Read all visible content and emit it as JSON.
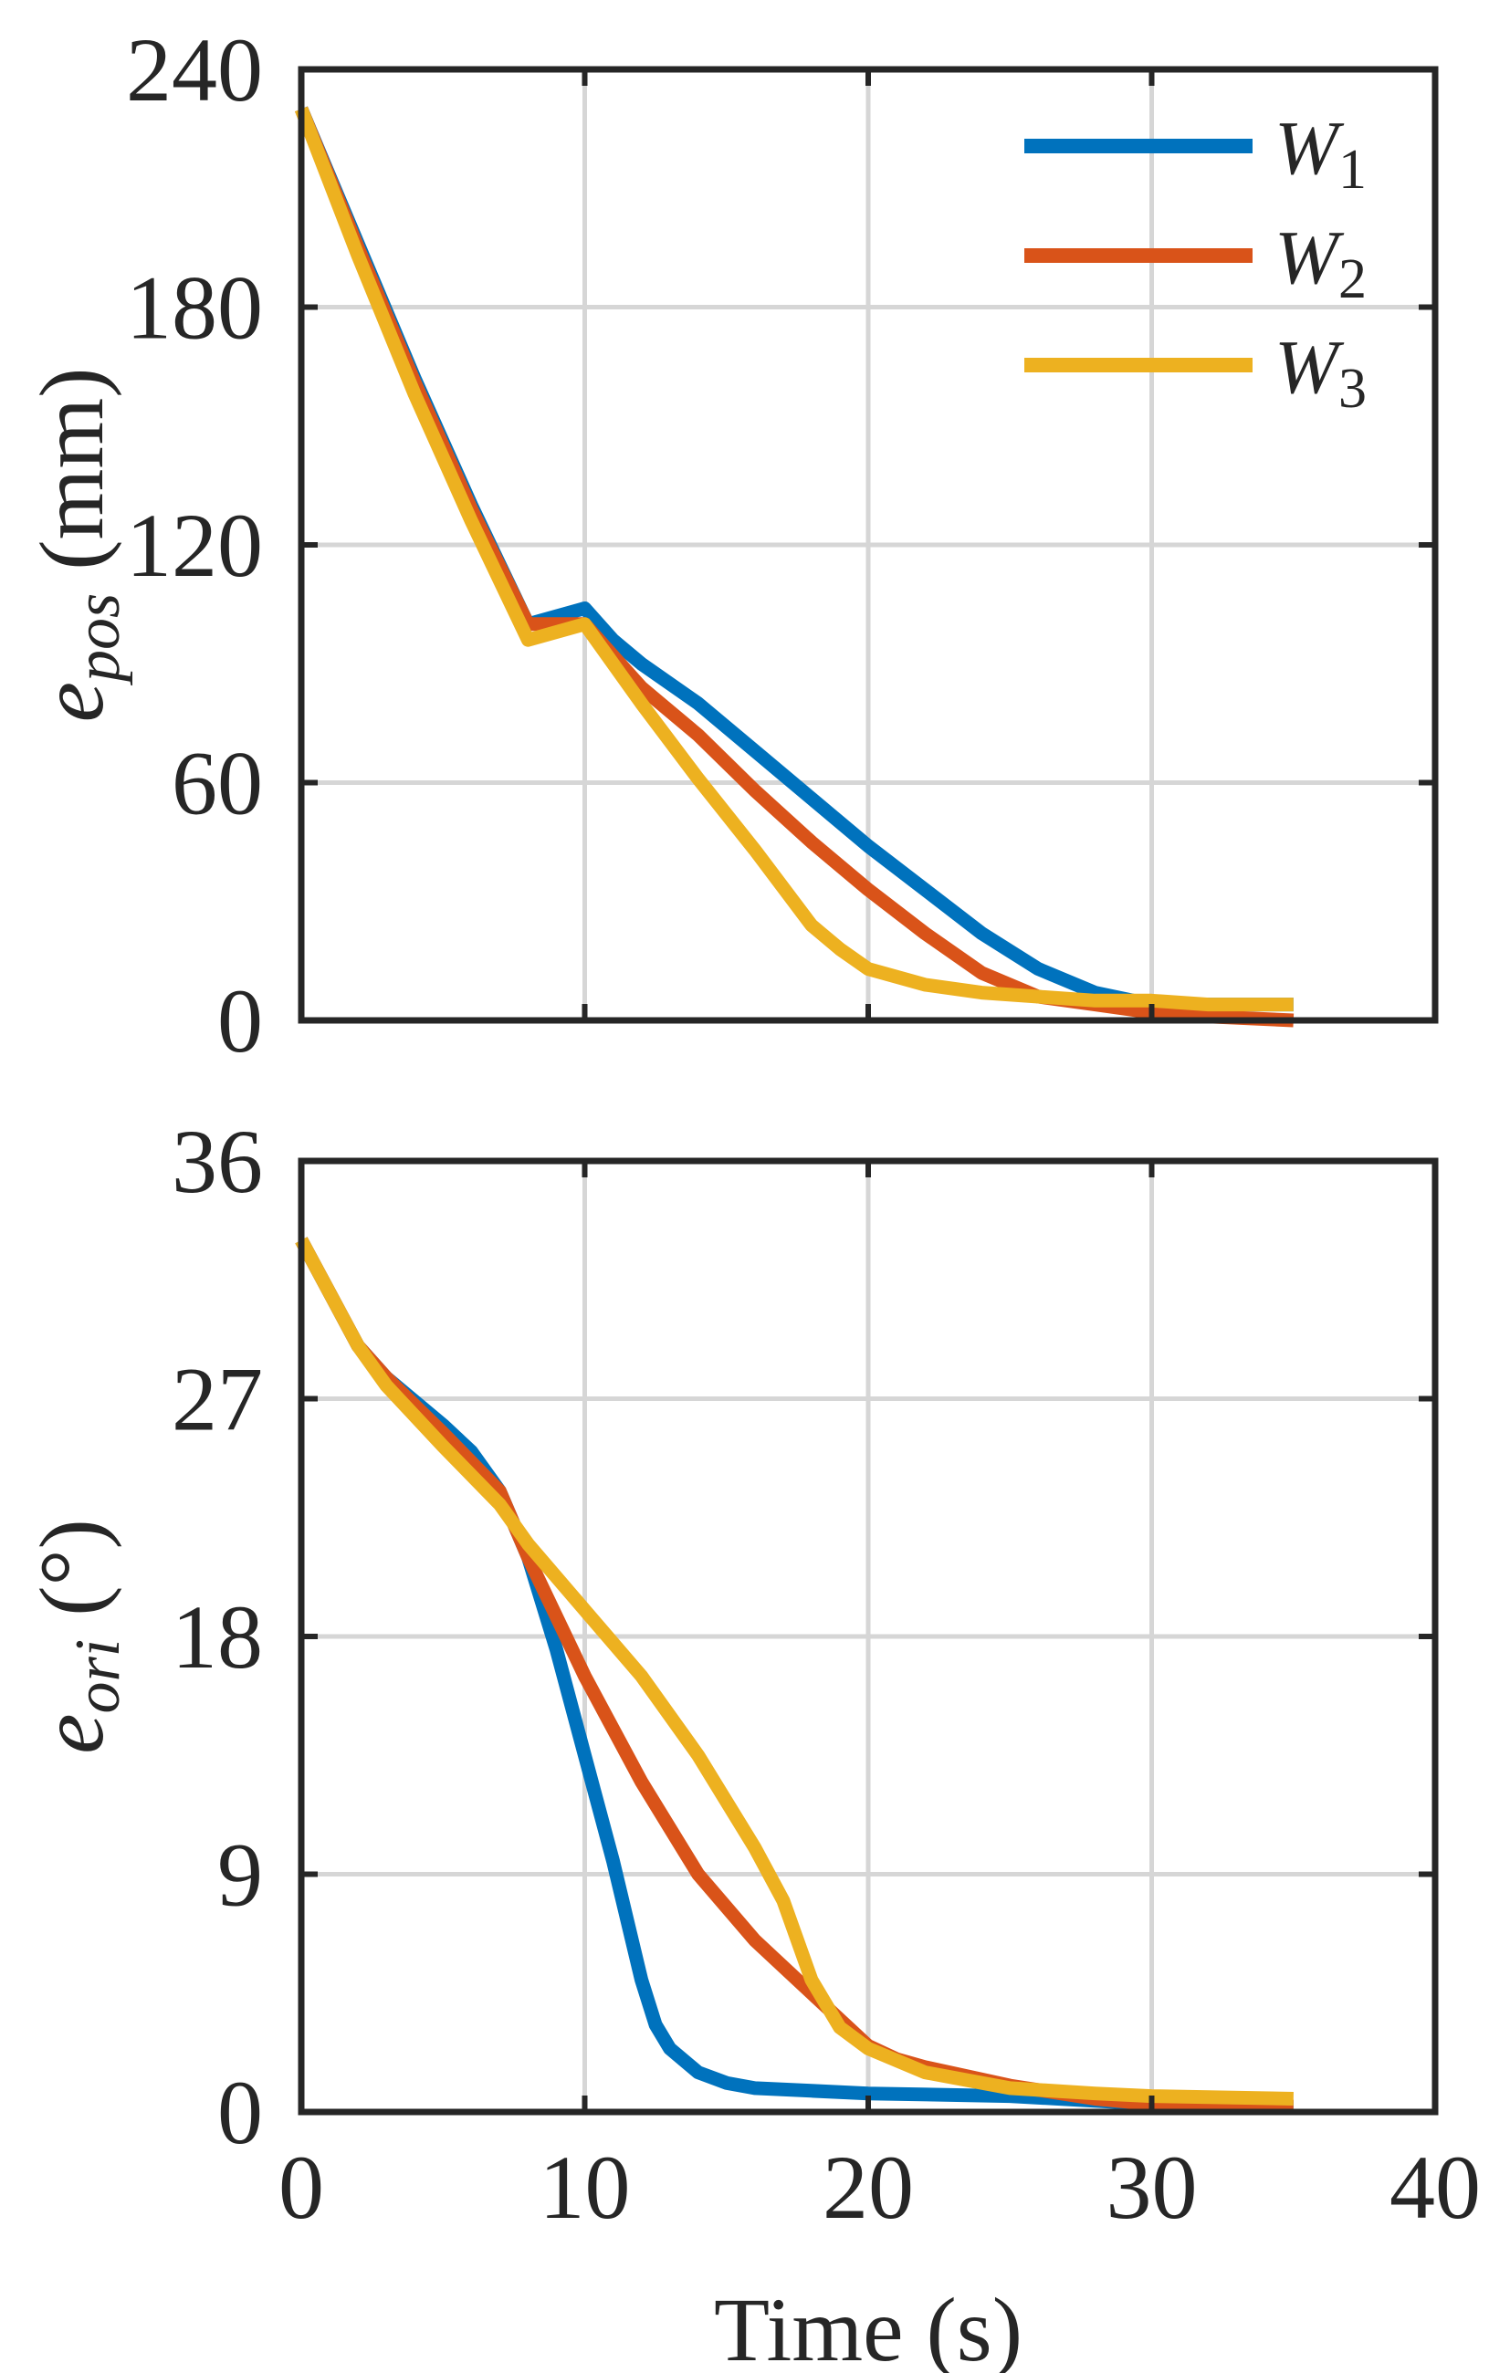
{
  "chart_data": [
    {
      "type": "line",
      "xlim": [
        0,
        40
      ],
      "ylim": [
        0,
        240
      ],
      "xticks": [
        0,
        10,
        20,
        30,
        40
      ],
      "xtick_labels_shown": false,
      "yticks": [
        0,
        60,
        120,
        180,
        240
      ],
      "ytick_labels": [
        "0",
        "60",
        "120",
        "180",
        "240"
      ],
      "ylabel_main": "e",
      "ylabel_sub": "pos",
      "ylabel_unit": " (mm)",
      "grid": true,
      "legend_position": "top-right",
      "series": [
        {
          "name": "W",
          "name_sub": "1",
          "color": "#0072BD",
          "x": [
            0,
            2,
            4,
            6,
            8,
            10,
            11,
            12,
            14,
            16,
            18,
            20,
            22,
            24,
            26,
            28,
            30,
            32,
            35
          ],
          "y": [
            230,
            196,
            162,
            130,
            100,
            104,
            96,
            90,
            80,
            68,
            56,
            44,
            33,
            22,
            13,
            7,
            4,
            4,
            4
          ]
        },
        {
          "name": "W",
          "name_sub": "2",
          "color": "#D95319",
          "x": [
            0,
            2,
            4,
            6,
            8,
            10,
            11,
            12,
            14,
            16,
            18,
            20,
            22,
            24,
            26,
            28,
            30,
            32,
            35
          ],
          "y": [
            230,
            195,
            161,
            129,
            100,
            100,
            92,
            84,
            72,
            58,
            45,
            33,
            22,
            12,
            6,
            4,
            2,
            1,
            0
          ]
        },
        {
          "name": "W",
          "name_sub": "3",
          "color": "#EDB120",
          "x": [
            0,
            2,
            4,
            6,
            8,
            10,
            12,
            14,
            16,
            18,
            19,
            20,
            22,
            24,
            26,
            28,
            30,
            32,
            35
          ],
          "y": [
            230,
            193,
            158,
            126,
            96,
            100,
            80,
            61,
            43,
            24,
            18,
            13,
            9,
            7,
            6,
            5,
            5,
            4,
            4
          ]
        }
      ]
    },
    {
      "type": "line",
      "xlim": [
        0,
        40
      ],
      "ylim": [
        0,
        36
      ],
      "xticks": [
        0,
        10,
        20,
        30,
        40
      ],
      "xtick_labels": [
        "0",
        "10",
        "20",
        "30",
        "40"
      ],
      "yticks": [
        0,
        9,
        18,
        27,
        36
      ],
      "ytick_labels": [
        "0",
        "9",
        "18",
        "27",
        "36"
      ],
      "xlabel": "Time (s)",
      "ylabel_main": "e",
      "ylabel_sub": "ori",
      "ylabel_unit": " (°)",
      "grid": true,
      "series": [
        {
          "name": "W",
          "name_sub": "1",
          "color": "#0072BD",
          "x": [
            0,
            1,
            2,
            3,
            5,
            6,
            7,
            8,
            9,
            10,
            11,
            12,
            12.5,
            13,
            14,
            15,
            16,
            18,
            20,
            25,
            30,
            35
          ],
          "y": [
            33,
            31,
            29,
            27.8,
            26,
            25,
            23.5,
            21,
            17.5,
            13.5,
            9.5,
            5,
            3.3,
            2.4,
            1.5,
            1.1,
            0.9,
            0.8,
            0.7,
            0.6,
            0.3,
            0.2
          ]
        },
        {
          "name": "W",
          "name_sub": "2",
          "color": "#D95319",
          "x": [
            0,
            1,
            2,
            3,
            5,
            7,
            8,
            10,
            12,
            14,
            16,
            18,
            20,
            21,
            22,
            25,
            28,
            30,
            35
          ],
          "y": [
            33,
            31,
            29,
            27.8,
            25.7,
            23.5,
            21,
            16.5,
            12.5,
            9,
            6.5,
            4.5,
            2.5,
            2,
            1.7,
            1,
            0.5,
            0.3,
            0.2
          ]
        },
        {
          "name": "W",
          "name_sub": "3",
          "color": "#EDB120",
          "x": [
            0,
            1,
            2,
            3,
            5,
            7,
            8,
            10,
            12,
            14,
            16,
            17,
            18,
            19,
            20,
            22,
            25,
            28,
            30,
            35
          ],
          "y": [
            33,
            31,
            29,
            27.5,
            25.2,
            23,
            21.5,
            19,
            16.5,
            13.5,
            10,
            8,
            5,
            3.2,
            2.4,
            1.5,
            0.9,
            0.7,
            0.6,
            0.5
          ]
        }
      ]
    }
  ]
}
